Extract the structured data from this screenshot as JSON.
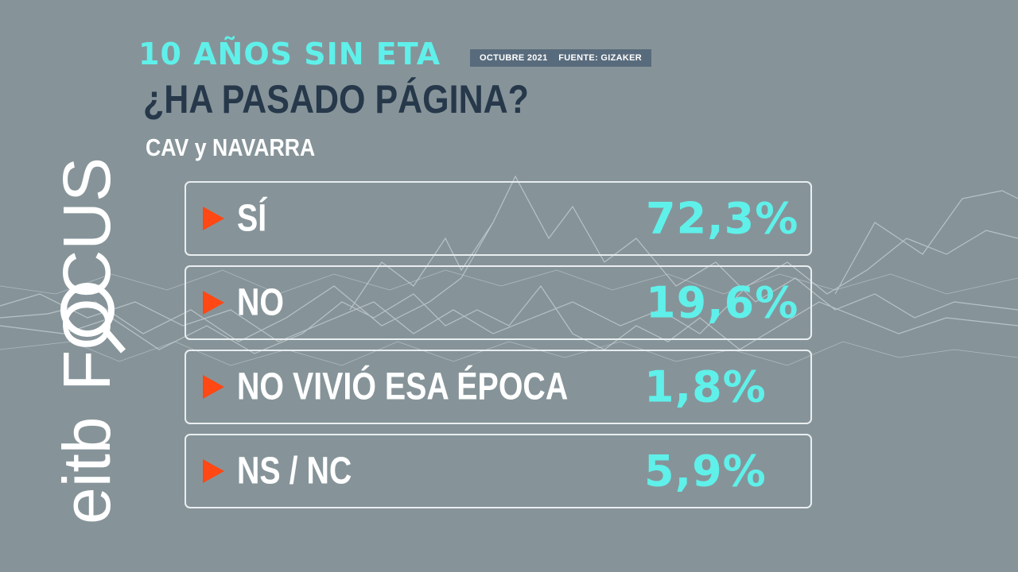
{
  "header": {
    "title": "10 AÑOS SIN ETA",
    "date": "OCTUBRE 2021",
    "source": "FUENTE: GIZAKER",
    "question": "¿HA PASADO PÁGINA?",
    "region": "CAV y NAVARRA"
  },
  "logo": {
    "text_part": "eitb",
    "brand_part": "FOCUS",
    "icon": "magnifier-icon"
  },
  "options": [
    {
      "label": "SÍ",
      "value": "72,3%",
      "marker": "arrow-right-icon"
    },
    {
      "label": "NO",
      "value": "19,6%",
      "marker": "arrow-right-icon"
    },
    {
      "label": "NO VIVIÓ ESA ÉPOCA",
      "value": "1,8%",
      "marker": "arrow-right-icon"
    },
    {
      "label": "NS / NC",
      "value": "5,9%",
      "marker": "arrow-right-icon"
    }
  ],
  "colors": {
    "background": "#869499",
    "accent_cyan": "#5ff0ea",
    "arrow": "#ff4813",
    "question": "#26384a"
  }
}
